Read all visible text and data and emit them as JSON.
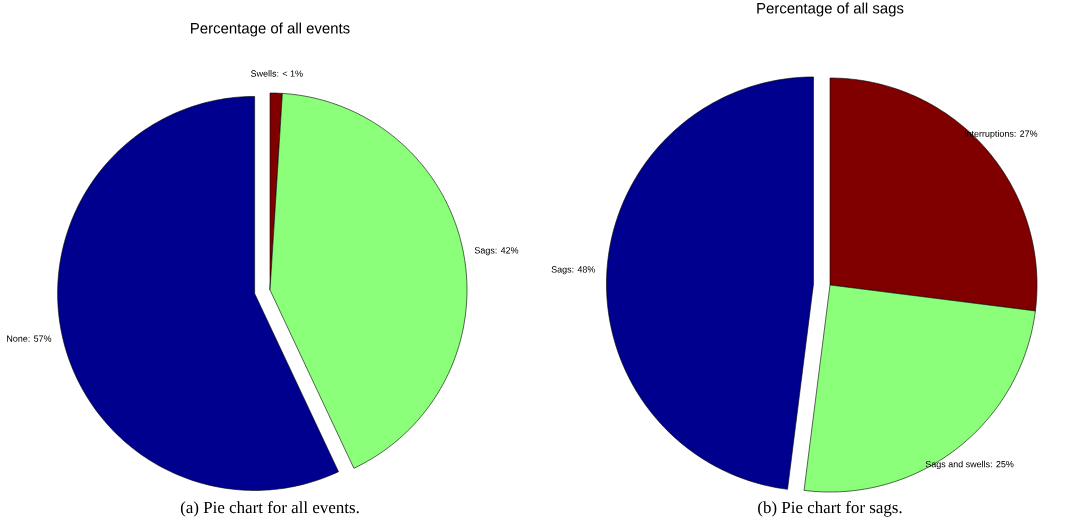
{
  "chart_data": [
    {
      "type": "pie",
      "title": "Percentage of all events",
      "categories": [
        "Swells: < 1%",
        "Sags: 42%",
        "None: 57%"
      ],
      "values": [
        1,
        42,
        57
      ],
      "colors": [
        "#800000",
        "#8cff7a",
        "#00008f"
      ],
      "annotations": [
        "(a) Pie chart for all events."
      ]
    },
    {
      "type": "pie",
      "title": "Percentage of all sags",
      "categories": [
        "Interruptions: 27%",
        "Sags and swells: 25%",
        "Sags: 48%"
      ],
      "values": [
        27,
        25,
        48
      ],
      "colors": [
        "#800000",
        "#8cff7a",
        "#00008f"
      ],
      "annotations": [
        "(b) Pie chart for sags."
      ]
    }
  ]
}
